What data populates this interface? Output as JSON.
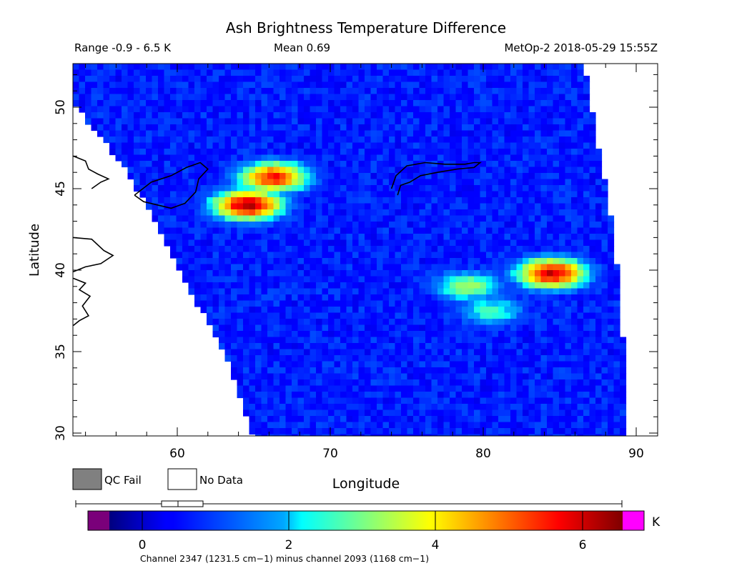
{
  "title": "Ash Brightness Temperature Difference",
  "header": {
    "range": "Range -0.9 - 6.5 K",
    "mean": "Mean 0.69",
    "satellite": "MetOp-2 2018-05-29 15:55Z"
  },
  "axes": {
    "xlabel": "Longitude",
    "ylabel": "Latitude",
    "xticks": [
      "60",
      "70",
      "80",
      "90"
    ],
    "yticks": [
      "30",
      "35",
      "40",
      "45",
      "50"
    ]
  },
  "legend": {
    "qc_fail": "QC Fail",
    "no_data": "No Data",
    "qc_fail_color": "#808080",
    "no_data_color": "#ffffff"
  },
  "colorbar": {
    "unit": "K",
    "ticks": [
      "0",
      "2",
      "4",
      "6"
    ],
    "footnote": "Channel 2347 (1231.5 cm−1) minus channel 2093 (1168 cm−1)",
    "under_color": "#7a007a",
    "over_color": "#ff00ff"
  },
  "chart_data": {
    "type": "heatmap",
    "title": "Ash Brightness Temperature Difference",
    "xlabel": "Longitude",
    "ylabel": "Latitude",
    "xlim": [
      53.2,
      92.4
    ],
    "ylim": [
      29.8,
      52.5
    ],
    "value_range": [
      -0.9,
      6.5
    ],
    "value_mean": 0.69,
    "colorbar_range": [
      -0.5,
      6.5
    ],
    "unit": "K",
    "swath": {
      "left_edge": [
        [
          53.2,
          50.2
        ],
        [
          56.8,
          46.0
        ],
        [
          60.2,
          40.0
        ],
        [
          63.2,
          34.5
        ],
        [
          65.0,
          29.8
        ]
      ],
      "right_edge": [
        [
          86.6,
          52.5
        ],
        [
          88.3,
          43.5
        ],
        [
          88.9,
          39.0
        ],
        [
          89.2,
          35.0
        ],
        [
          89.3,
          29.8
        ]
      ],
      "top_lat": 52.5,
      "background_value": 0.6
    },
    "features": [
      {
        "name": "ash plume north-west",
        "center": [
          64.6,
          44.0
        ],
        "peak_value": 6.2
      },
      {
        "name": "ash plume north-west tip",
        "center": [
          66.3,
          45.7
        ],
        "peak_value": 5.5
      },
      {
        "name": "ash plume east",
        "center": [
          84.5,
          39.8
        ],
        "peak_value": 6.0
      },
      {
        "name": "plume tail east",
        "center": [
          79.0,
          39.0
        ],
        "peak_value": 3.2
      },
      {
        "name": "plume lower band",
        "center": [
          80.5,
          37.5
        ],
        "peak_value": 2.6
      }
    ]
  }
}
